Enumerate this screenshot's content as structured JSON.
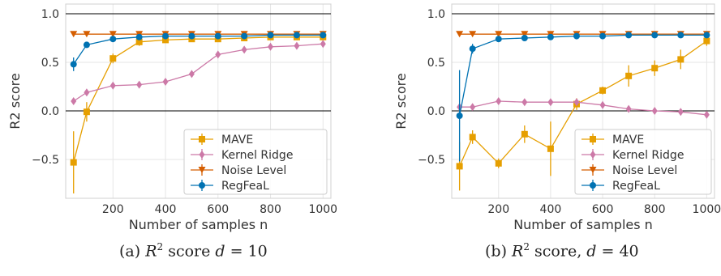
{
  "chart_data": [
    {
      "type": "line",
      "caption_prefix": "(a)",
      "caption_math": "R",
      "caption_sup": "2",
      "caption_text": " score ",
      "caption_var": "d",
      "caption_eq": " = 10",
      "xlabel": "Number of samples n",
      "ylabel": "R2 score",
      "xlim": [
        20,
        1030
      ],
      "ylim": [
        -0.9,
        1.1
      ],
      "xticks": [
        200,
        400,
        600,
        800,
        1000
      ],
      "yticks": [
        -0.5,
        0.0,
        0.5,
        1.0
      ],
      "ytick_labels": [
        "−0.5",
        "0.0",
        "0.5",
        "1.0"
      ],
      "grid": true,
      "hlines": [
        1.0,
        0.0
      ],
      "legend": "lower-right",
      "x": [
        50,
        100,
        200,
        300,
        400,
        500,
        600,
        700,
        800,
        900,
        1000
      ],
      "series": [
        {
          "name": "MAVE",
          "color": "#e69f00",
          "marker": "square",
          "values": [
            -0.53,
            -0.01,
            0.54,
            0.71,
            0.73,
            0.74,
            0.74,
            0.75,
            0.76,
            0.76,
            0.76
          ],
          "err": [
            0.32,
            0.1,
            0.05,
            0.04,
            0.03,
            0.03,
            0.03,
            0.02,
            0.02,
            0.02,
            0.02
          ]
        },
        {
          "name": "Kernel Ridge",
          "color": "#cc79a7",
          "marker": "diamond",
          "values": [
            0.1,
            0.19,
            0.26,
            0.27,
            0.3,
            0.38,
            0.58,
            0.63,
            0.66,
            0.67,
            0.69
          ],
          "err": [
            0.03,
            0.03,
            0.02,
            0.02,
            0.02,
            0.02,
            0.02,
            0.02,
            0.02,
            0.02,
            0.02
          ]
        },
        {
          "name": "Noise Level",
          "color": "#d55e00",
          "marker": "triangle-down",
          "values": [
            0.79,
            0.79,
            0.79,
            0.79,
            0.79,
            0.79,
            0.79,
            0.79,
            0.79,
            0.79,
            0.79
          ],
          "err": [
            0,
            0,
            0,
            0,
            0,
            0,
            0,
            0,
            0,
            0,
            0
          ]
        },
        {
          "name": "RegFeaL",
          "color": "#0072b2",
          "marker": "circle",
          "values": [
            0.48,
            0.68,
            0.74,
            0.76,
            0.77,
            0.77,
            0.77,
            0.77,
            0.78,
            0.78,
            0.78
          ],
          "err": [
            0.07,
            0.03,
            0.02,
            0.01,
            0.01,
            0.01,
            0.01,
            0.01,
            0.01,
            0.01,
            0.01
          ]
        }
      ]
    },
    {
      "type": "line",
      "caption_prefix": "(b)",
      "caption_math": "R",
      "caption_sup": "2",
      "caption_text": " score, ",
      "caption_var": "d",
      "caption_eq": " = 40",
      "xlabel": "Number of samples n",
      "ylabel": "R2 score",
      "xlim": [
        20,
        1030
      ],
      "ylim": [
        -0.9,
        1.1
      ],
      "xticks": [
        200,
        400,
        600,
        800,
        1000
      ],
      "yticks": [
        -0.5,
        0.0,
        0.5,
        1.0
      ],
      "ytick_labels": [
        "−0.5",
        "0.0",
        "0.5",
        "1.0"
      ],
      "grid": true,
      "hlines": [
        1.0,
        0.0
      ],
      "legend": "lower-right",
      "x": [
        50,
        100,
        200,
        300,
        400,
        500,
        600,
        700,
        800,
        900,
        1000
      ],
      "series": [
        {
          "name": "MAVE",
          "color": "#e69f00",
          "marker": "square",
          "values": [
            -0.57,
            -0.27,
            -0.54,
            -0.24,
            -0.39,
            0.07,
            0.21,
            0.36,
            0.44,
            0.53,
            0.72
          ],
          "err": [
            0.25,
            0.07,
            0.05,
            0.09,
            0.28,
            0.06,
            0.04,
            0.11,
            0.08,
            0.1,
            0.05
          ]
        },
        {
          "name": "Kernel Ridge",
          "color": "#cc79a7",
          "marker": "diamond",
          "values": [
            0.04,
            0.04,
            0.1,
            0.09,
            0.09,
            0.09,
            0.06,
            0.02,
            0.0,
            -0.01,
            -0.04
          ],
          "err": [
            0.02,
            0.02,
            0.02,
            0.02,
            0.02,
            0.02,
            0.02,
            0.02,
            0.02,
            0.02,
            0.02
          ]
        },
        {
          "name": "Noise Level",
          "color": "#d55e00",
          "marker": "triangle-down",
          "values": [
            0.79,
            0.79,
            0.79,
            0.79,
            0.79,
            0.79,
            0.79,
            0.79,
            0.79,
            0.79,
            0.79
          ],
          "err": [
            0,
            0,
            0,
            0,
            0,
            0,
            0,
            0,
            0,
            0,
            0
          ]
        },
        {
          "name": "RegFeaL",
          "color": "#0072b2",
          "marker": "circle",
          "values": [
            -0.05,
            0.64,
            0.74,
            0.75,
            0.76,
            0.77,
            0.77,
            0.78,
            0.78,
            0.78,
            0.78
          ],
          "err": [
            0.47,
            0.05,
            0.02,
            0.01,
            0.01,
            0.01,
            0.01,
            0.01,
            0.01,
            0.01,
            0.01
          ]
        }
      ]
    }
  ]
}
